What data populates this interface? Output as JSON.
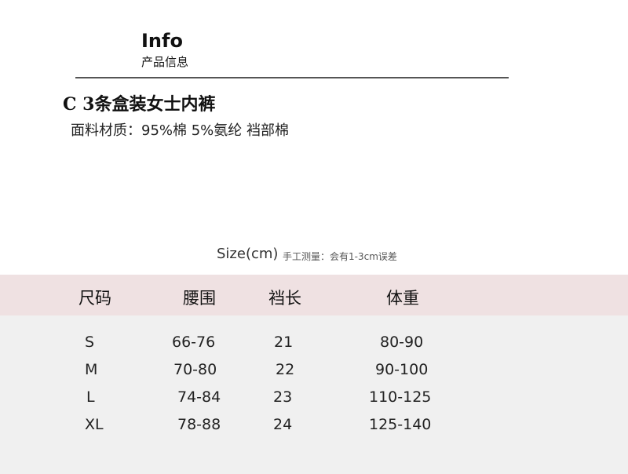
{
  "header": {
    "title": "Info",
    "subtitle": "产品信息"
  },
  "product": {
    "name": "C 3条盒装女士内裤",
    "material": "面料材质：95%棉  5%氨纶 裆部棉"
  },
  "size": {
    "label": "Size(cm)",
    "note": "手工测量：会有1-3cm误差"
  },
  "table": {
    "columns": [
      "尺码",
      "腰围",
      "裆长",
      "体重"
    ],
    "rows": [
      [
        "S",
        "66-76",
        "21",
        "80-90"
      ],
      [
        "M",
        "70-80",
        "22",
        "90-100"
      ],
      [
        "L",
        "74-84",
        "23",
        "110-125"
      ],
      [
        "XL",
        "78-88",
        "24",
        "125-140"
      ]
    ]
  },
  "colors": {
    "header_band": "#efe1e2",
    "body_band": "#f0f0f0"
  }
}
